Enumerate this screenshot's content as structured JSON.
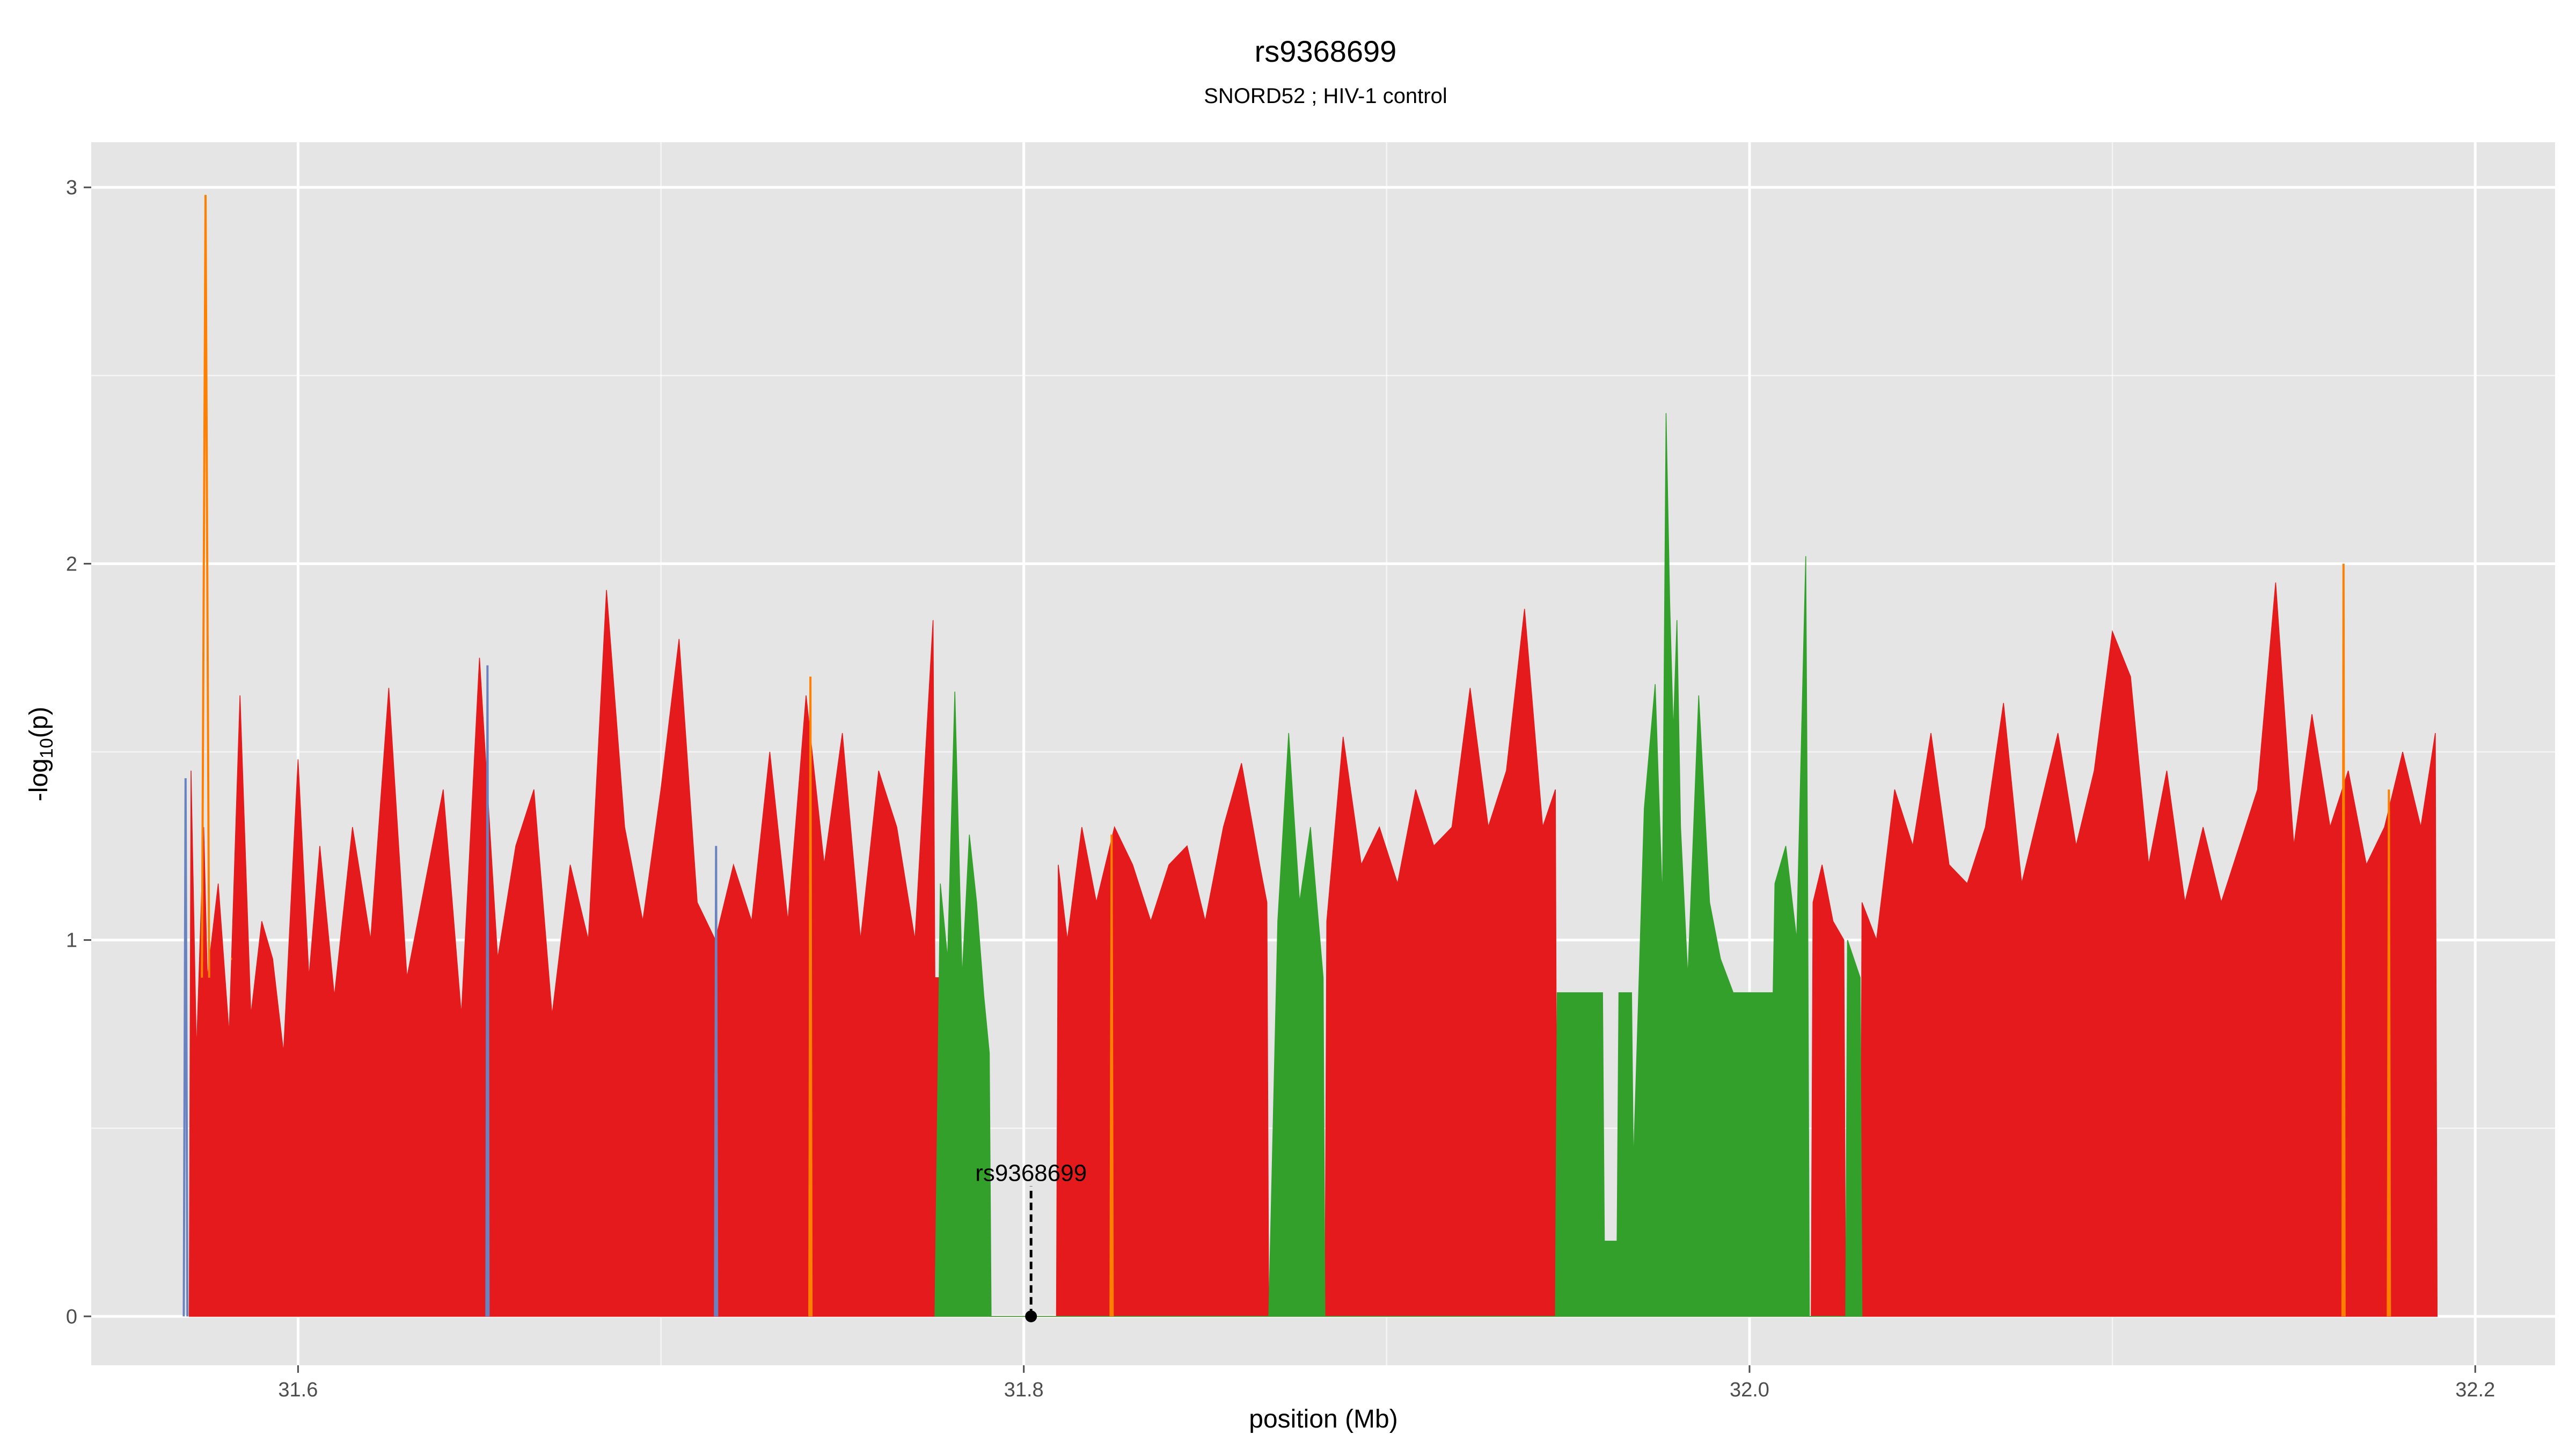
{
  "chart_data": {
    "type": "area",
    "title": "rs9368699",
    "subtitle": "SNORD52 ; HIV-1 control",
    "xlabel": "position (Mb)",
    "ylabel": "-log10(p)",
    "ylabel_prefix": "-log",
    "ylabel_sub": "10",
    "ylabel_suffix": "(p)",
    "xlim": [
      31.543,
      32.222
    ],
    "ylim": [
      -0.13,
      3.12
    ],
    "xticks": [
      31.6,
      31.8,
      32.0,
      32.2
    ],
    "xtick_labels": [
      "31.6",
      "31.8",
      "32.0",
      "32.2"
    ],
    "yticks": [
      0,
      1,
      2,
      3
    ],
    "ytick_labels": [
      "0",
      "1",
      "2",
      "3"
    ],
    "grid": true,
    "legend": "none",
    "panel_bg": "#E5E5E5",
    "grid_color": "#FFFFFF",
    "colors": {
      "red": "#E41A1C",
      "green": "#33A02C",
      "orange": "#FF7F00",
      "blue": "#6A83C0"
    },
    "series": [
      {
        "color": "red",
        "x": [
          31.57,
          31.5705,
          31.572,
          31.574,
          31.575,
          31.578,
          31.581,
          31.584,
          31.587,
          31.59,
          31.593,
          31.596,
          31.6,
          31.603,
          31.606,
          31.61,
          31.615,
          31.62,
          31.625,
          31.63,
          31.635,
          31.64,
          31.645,
          31.65,
          31.655,
          31.66,
          31.665,
          31.67,
          31.675,
          31.68,
          31.685,
          31.69,
          31.695,
          31.7,
          31.705,
          31.71,
          31.715,
          31.72,
          31.725,
          31.73,
          31.735,
          31.74,
          31.745,
          31.75,
          31.755,
          31.76,
          31.765,
          31.77,
          31.775,
          31.7755,
          31.7795,
          31.78,
          31.809,
          31.8095,
          31.812,
          31.816,
          31.82,
          31.825,
          31.83,
          31.835,
          31.84,
          31.845,
          31.85,
          31.855,
          31.86,
          31.865,
          31.867,
          31.8675,
          31.883,
          31.8835,
          31.888,
          31.893,
          31.898,
          31.903,
          31.908,
          31.913,
          31.918,
          31.923,
          31.928,
          31.933,
          31.938,
          31.943,
          31.9465,
          31.947,
          32.017,
          32.0175,
          32.02,
          32.023,
          32.026,
          32.0265,
          32.0305,
          32.031,
          32.035,
          32.04,
          32.045,
          32.05,
          32.055,
          32.06,
          32.065,
          32.07,
          32.075,
          32.08,
          32.085,
          32.09,
          32.095,
          32.1,
          32.105,
          32.11,
          32.115,
          32.12,
          32.125,
          32.13,
          32.135,
          32.14,
          32.145,
          32.15,
          32.155,
          32.16,
          32.165,
          32.17,
          32.175,
          32.18,
          32.185,
          32.189,
          32.1895
        ],
        "y": [
          0,
          1.45,
          0.7,
          1.3,
          0.9,
          1.15,
          0.75,
          1.65,
          0.8,
          1.05,
          0.95,
          0.7,
          1.48,
          0.9,
          1.25,
          0.85,
          1.3,
          1.0,
          1.67,
          0.9,
          1.15,
          1.4,
          0.8,
          1.75,
          0.95,
          1.25,
          1.4,
          0.8,
          1.2,
          1.0,
          1.93,
          1.3,
          1.05,
          1.4,
          1.8,
          1.1,
          1.0,
          1.2,
          1.05,
          1.5,
          1.05,
          1.65,
          1.2,
          1.55,
          1.0,
          1.45,
          1.3,
          1.0,
          1.85,
          0.9,
          0.9,
          0.0,
          0.0,
          1.2,
          1.0,
          1.3,
          1.1,
          1.3,
          1.2,
          1.05,
          1.2,
          1.25,
          1.05,
          1.3,
          1.47,
          1.2,
          1.1,
          0.0,
          0.0,
          1.05,
          1.54,
          1.2,
          1.3,
          1.15,
          1.4,
          1.25,
          1.3,
          1.67,
          1.3,
          1.45,
          1.88,
          1.3,
          1.4,
          0.0,
          0.0,
          1.1,
          1.2,
          1.05,
          1.0,
          0.0,
          0.0,
          1.1,
          1.0,
          1.4,
          1.25,
          1.55,
          1.2,
          1.15,
          1.3,
          1.63,
          1.15,
          1.35,
          1.55,
          1.25,
          1.45,
          1.82,
          1.7,
          1.2,
          1.45,
          1.1,
          1.3,
          1.1,
          1.25,
          1.4,
          1.95,
          1.25,
          1.6,
          1.3,
          1.45,
          1.2,
          1.3,
          1.5,
          1.3,
          1.55,
          0.0
        ]
      },
      {
        "color": "green",
        "x": [
          31.7755,
          31.777,
          31.779,
          31.781,
          31.783,
          31.785,
          31.787,
          31.789,
          31.7905,
          31.791,
          31.8675,
          31.87,
          31.873,
          31.876,
          31.879,
          31.8825,
          31.883,
          31.9465,
          31.947,
          31.9595,
          31.96,
          31.9635,
          31.964,
          31.9675,
          31.968,
          31.971,
          31.974,
          31.976,
          31.977,
          31.978,
          31.979,
          31.98,
          31.981,
          31.983,
          31.986,
          31.989,
          31.992,
          31.9955,
          31.996,
          32.0065,
          32.007,
          32.01,
          32.013,
          32.0155,
          32.016,
          32.0165,
          32.0265,
          32.027,
          32.0305,
          32.031
        ],
        "y": [
          0,
          1.15,
          0.95,
          1.66,
          0.9,
          1.28,
          1.1,
          0.85,
          0.7,
          0,
          0,
          1.05,
          1.55,
          1.1,
          1.3,
          0.9,
          0,
          0,
          0.86,
          0.86,
          0.2,
          0.2,
          0.86,
          0.86,
          0.4,
          1.35,
          1.68,
          1.1,
          2.4,
          1.9,
          1.55,
          1.85,
          1.3,
          0.9,
          1.65,
          1.1,
          0.95,
          0.86,
          0.86,
          0.86,
          1.15,
          1.25,
          1.0,
          2.02,
          1.2,
          0.0,
          0.0,
          1.0,
          0.9,
          0.0
        ]
      }
    ],
    "accent_lines": [
      {
        "color": "orange",
        "x": [
          31.5735,
          31.5745,
          31.5755
        ],
        "y": [
          0.9,
          2.98,
          0.9
        ]
      },
      {
        "color": "orange",
        "x": [
          31.5815,
          31.5818
        ],
        "y": [
          0.95,
          0.95
        ]
      },
      {
        "color": "blue",
        "x": [
          31.5685,
          31.569,
          31.5695
        ],
        "y": [
          0,
          1.43,
          0
        ]
      },
      {
        "color": "blue",
        "x": [
          31.6519,
          31.6522,
          31.6525
        ],
        "y": [
          0,
          1.73,
          0
        ]
      },
      {
        "color": "orange",
        "x": [
          31.7409,
          31.7412,
          31.7415
        ],
        "y": [
          0,
          1.7,
          0
        ]
      },
      {
        "color": "orange",
        "x": [
          31.8239,
          31.8242,
          31.8245
        ],
        "y": [
          0,
          1.28,
          0
        ]
      },
      {
        "color": "orange",
        "x": [
          32.1634,
          32.1637,
          32.164
        ],
        "y": [
          0,
          2.0,
          0
        ]
      },
      {
        "color": "blue",
        "x": [
          31.7149,
          31.7152,
          31.7155
        ],
        "y": [
          0,
          1.25,
          0
        ]
      },
      {
        "color": "orange",
        "x": [
          32.1759,
          32.1762,
          32.1765
        ],
        "y": [
          0,
          1.4,
          0
        ]
      }
    ],
    "annotation": {
      "label": "rs9368699",
      "x": 31.802,
      "y": 0.0,
      "label_y": 0.36
    }
  }
}
